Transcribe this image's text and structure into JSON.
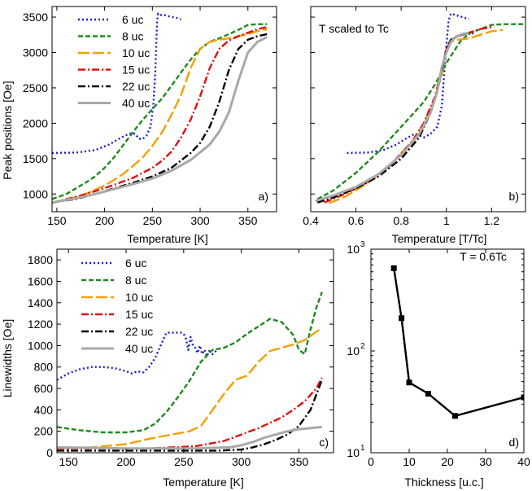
{
  "chart_data": [
    {
      "id": "a",
      "type": "line",
      "panel_label": "a)",
      "xlabel": "Temperature [K]",
      "ylabel": "Peak positions [Oe]",
      "xlim": [
        145,
        380
      ],
      "ylim": [
        750,
        3650
      ],
      "yscale": "linear",
      "xticks": [
        150,
        200,
        250,
        300,
        350
      ],
      "xtick_labels": [
        "150",
        "200",
        "250",
        "300",
        "350"
      ],
      "yticks": [
        1000,
        1500,
        2000,
        2500,
        3000,
        3500
      ],
      "ytick_labels": [
        "1000",
        "1500",
        "2000",
        "2500",
        "3000",
        "3500"
      ],
      "series": [
        {
          "name": "6 uc",
          "color": "#1a1ad6",
          "dash": "2,3",
          "width": 2.4,
          "x": [
            145,
            170,
            190,
            205,
            215,
            222,
            228,
            232,
            236,
            240,
            244,
            248,
            251,
            253,
            254,
            255,
            256,
            258,
            262,
            268,
            275,
            280
          ],
          "y": [
            1580,
            1585,
            1620,
            1700,
            1780,
            1830,
            1860,
            1850,
            1780,
            1780,
            1830,
            1950,
            2250,
            2700,
            3100,
            3450,
            3550,
            3530,
            3530,
            3510,
            3490,
            3470
          ]
        },
        {
          "name": "8 uc",
          "color": "#1e8a1e",
          "dash": "6,3",
          "width": 2.4,
          "x": [
            145,
            160,
            170,
            180,
            190,
            200,
            210,
            220,
            230,
            240,
            250,
            260,
            270,
            280,
            290,
            300,
            310,
            320,
            330,
            340,
            350,
            360,
            370
          ],
          "y": [
            930,
            1000,
            1080,
            1160,
            1250,
            1370,
            1520,
            1700,
            1880,
            2050,
            2200,
            2350,
            2530,
            2720,
            2900,
            3050,
            3150,
            3200,
            3260,
            3320,
            3390,
            3400,
            3400
          ]
        },
        {
          "name": "10 uc",
          "color": "#f5a000",
          "dash": "14,4",
          "width": 2.4,
          "x": [
            145,
            160,
            180,
            200,
            210,
            220,
            230,
            240,
            250,
            260,
            270,
            280,
            290,
            300,
            310,
            320,
            330,
            340,
            350,
            360,
            370
          ],
          "y": [
            870,
            920,
            1000,
            1120,
            1200,
            1290,
            1400,
            1520,
            1680,
            1870,
            2120,
            2400,
            2780,
            3050,
            3150,
            3180,
            3200,
            3230,
            3260,
            3300,
            3330
          ]
        },
        {
          "name": "15 uc",
          "color": "#e01010",
          "dash": "9,3,2,3",
          "width": 2.4,
          "x": [
            145,
            170,
            190,
            210,
            230,
            250,
            260,
            270,
            280,
            290,
            300,
            310,
            320,
            330,
            340,
            350,
            360,
            370
          ],
          "y": [
            880,
            960,
            1040,
            1130,
            1230,
            1370,
            1470,
            1600,
            1800,
            2050,
            2380,
            2780,
            3050,
            3170,
            3230,
            3280,
            3330,
            3360
          ]
        },
        {
          "name": "22 uc",
          "color": "#000000",
          "dash": "9,3,2,3",
          "width": 2.4,
          "x": [
            145,
            170,
            190,
            210,
            230,
            250,
            270,
            290,
            300,
            310,
            320,
            330,
            340,
            350,
            360,
            370
          ],
          "y": [
            880,
            930,
            1000,
            1080,
            1160,
            1250,
            1370,
            1580,
            1720,
            1950,
            2300,
            2750,
            3050,
            3180,
            3230,
            3260
          ]
        },
        {
          "name": "40 uc",
          "color": "#a8a8a8",
          "dash": "",
          "width": 3,
          "x": [
            145,
            170,
            190,
            210,
            230,
            250,
            270,
            290,
            310,
            320,
            330,
            340,
            350,
            360,
            370
          ],
          "y": [
            880,
            940,
            1000,
            1070,
            1140,
            1220,
            1330,
            1480,
            1700,
            1880,
            2150,
            2600,
            3000,
            3150,
            3220
          ]
        }
      ]
    },
    {
      "id": "b",
      "type": "line",
      "panel_label": "b)",
      "annotation": "T  scaled to Tc",
      "xlabel": "Temperature [T/Tc]",
      "ylabel": "",
      "xlim": [
        0.4,
        1.35
      ],
      "ylim": [
        750,
        3650
      ],
      "yscale": "linear",
      "xticks": [
        0.4,
        0.6,
        0.8,
        1.0,
        1.2
      ],
      "xtick_labels": [
        "0.4",
        "0.6",
        "0.8",
        "1",
        "1.2"
      ],
      "yticks": [
        1000,
        1500,
        2000,
        2500,
        3000,
        3500
      ],
      "ytick_labels": [],
      "series": [
        {
          "name": "6 uc",
          "color": "#1a1ad6",
          "dash": "2,3",
          "width": 2.4,
          "x": [
            0.56,
            0.65,
            0.72,
            0.78,
            0.82,
            0.86,
            0.9,
            0.93,
            0.96,
            0.98,
            0.99,
            1.0,
            1.01,
            1.02,
            1.04,
            1.07,
            1.1
          ],
          "y": [
            1580,
            1585,
            1620,
            1700,
            1780,
            1850,
            1800,
            1850,
            1950,
            2250,
            2700,
            3100,
            3450,
            3550,
            3530,
            3500,
            3470
          ]
        },
        {
          "name": "8 uc",
          "color": "#1e8a1e",
          "dash": "6,3",
          "width": 2.4,
          "x": [
            0.43,
            0.5,
            0.6,
            0.7,
            0.8,
            0.9,
            0.95,
            1.0,
            1.03,
            1.06,
            1.1,
            1.15,
            1.2,
            1.25,
            1.3,
            1.35
          ],
          "y": [
            930,
            1050,
            1300,
            1600,
            1950,
            2300,
            2550,
            2850,
            3000,
            3150,
            3270,
            3330,
            3390,
            3400,
            3400,
            3400
          ]
        },
        {
          "name": "10 uc",
          "color": "#f5a000",
          "dash": "14,4",
          "width": 2.4,
          "x": [
            0.48,
            0.55,
            0.65,
            0.75,
            0.85,
            0.9,
            0.95,
            0.98,
            1.0,
            1.02,
            1.05,
            1.1,
            1.15,
            1.2,
            1.25
          ],
          "y": [
            870,
            960,
            1150,
            1400,
            1750,
            2000,
            2350,
            2700,
            3050,
            3150,
            3180,
            3200,
            3250,
            3300,
            3320
          ]
        },
        {
          "name": "15 uc",
          "color": "#e01010",
          "dash": "9,3,2,3",
          "width": 2.4,
          "x": [
            0.46,
            0.55,
            0.65,
            0.75,
            0.85,
            0.9,
            0.95,
            0.98,
            1.0,
            1.02,
            1.05,
            1.1,
            1.15,
            1.2
          ],
          "y": [
            880,
            1000,
            1170,
            1400,
            1750,
            2000,
            2380,
            2780,
            3050,
            3170,
            3230,
            3280,
            3330,
            3360
          ]
        },
        {
          "name": "22 uc",
          "color": "#000000",
          "dash": "9,3,2,3",
          "width": 2.4,
          "x": [
            0.43,
            0.5,
            0.6,
            0.7,
            0.8,
            0.88,
            0.93,
            0.96,
            0.99,
            1.0,
            1.02,
            1.05,
            1.08,
            1.12
          ],
          "y": [
            880,
            950,
            1080,
            1250,
            1500,
            1800,
            2150,
            2450,
            2900,
            3050,
            3180,
            3230,
            3260,
            3270
          ]
        },
        {
          "name": "40 uc",
          "color": "#a8a8a8",
          "dash": "",
          "width": 3,
          "x": [
            0.42,
            0.5,
            0.6,
            0.7,
            0.8,
            0.88,
            0.93,
            0.96,
            0.98,
            1.0,
            1.02,
            1.04,
            1.07,
            1.1
          ],
          "y": [
            900,
            980,
            1100,
            1280,
            1550,
            1850,
            2150,
            2450,
            2800,
            3000,
            3150,
            3220,
            3260,
            3280
          ]
        }
      ]
    },
    {
      "id": "c",
      "type": "line",
      "panel_label": "c)",
      "xlabel": "Temperature [K]",
      "ylabel": "Linewidths [Oe]",
      "xlim": [
        140,
        380
      ],
      "ylim": [
        0,
        1900
      ],
      "yscale": "linear",
      "xticks": [
        150,
        200,
        250,
        300,
        350
      ],
      "xtick_labels": [
        "150",
        "200",
        "250",
        "300",
        "350"
      ],
      "yticks": [
        0,
        200,
        400,
        600,
        800,
        1000,
        1200,
        1400,
        1600,
        1800
      ],
      "ytick_labels": [
        "0",
        "200",
        "400",
        "600",
        "800",
        "1000",
        "1200",
        "1400",
        "1600",
        "1800"
      ],
      "series": [
        {
          "name": "6 uc",
          "color": "#1a1ad6",
          "dash": "2,3",
          "width": 2.4,
          "x": [
            140,
            150,
            160,
            170,
            180,
            190,
            200,
            205,
            210,
            215,
            220,
            225,
            230,
            235,
            240,
            245,
            248,
            250,
            252,
            254,
            256,
            258,
            260,
            262,
            264,
            266,
            268,
            270,
            272,
            275,
            280
          ],
          "y": [
            680,
            740,
            780,
            800,
            800,
            790,
            760,
            740,
            760,
            750,
            800,
            880,
            1000,
            1120,
            1120,
            1120,
            1120,
            1110,
            1060,
            960,
            1080,
            1000,
            980,
            930,
            1000,
            920,
            960,
            900,
            950,
            920,
            970
          ]
        },
        {
          "name": "8 uc",
          "color": "#1e8a1e",
          "dash": "6,3",
          "width": 2.4,
          "x": [
            140,
            160,
            180,
            200,
            215,
            225,
            235,
            245,
            255,
            265,
            275,
            285,
            295,
            305,
            315,
            325,
            335,
            345,
            350,
            355,
            360,
            365,
            370
          ],
          "y": [
            240,
            210,
            190,
            190,
            210,
            270,
            380,
            520,
            670,
            850,
            960,
            980,
            1030,
            1110,
            1180,
            1250,
            1220,
            1100,
            960,
            920,
            1150,
            1350,
            1500
          ]
        },
        {
          "name": "10 uc",
          "color": "#f5a000",
          "dash": "14,4",
          "width": 2.4,
          "x": [
            140,
            170,
            200,
            220,
            240,
            255,
            265,
            275,
            285,
            295,
            305,
            315,
            325,
            335,
            345,
            355,
            365,
            370
          ],
          "y": [
            40,
            50,
            80,
            130,
            170,
            200,
            250,
            400,
            550,
            680,
            720,
            850,
            950,
            980,
            1010,
            1050,
            1130,
            1160
          ]
        },
        {
          "name": "15 uc",
          "color": "#e01010",
          "dash": "9,3,2,3",
          "width": 2.4,
          "x": [
            140,
            180,
            220,
            260,
            275,
            285,
            295,
            305,
            315,
            325,
            335,
            345,
            355,
            365,
            370
          ],
          "y": [
            40,
            40,
            40,
            60,
            90,
            110,
            150,
            190,
            230,
            280,
            330,
            400,
            480,
            600,
            700
          ]
        },
        {
          "name": "22 uc",
          "color": "#000000",
          "dash": "9,3,2,3",
          "width": 2.4,
          "x": [
            140,
            200,
            250,
            280,
            300,
            310,
            320,
            330,
            340,
            350,
            360,
            370
          ],
          "y": [
            20,
            20,
            20,
            20,
            30,
            50,
            80,
            120,
            170,
            250,
            400,
            680
          ]
        },
        {
          "name": "40 uc",
          "color": "#a8a8a8",
          "dash": "",
          "width": 3,
          "x": [
            140,
            200,
            260,
            290,
            300,
            310,
            320,
            330,
            340,
            350,
            360,
            370
          ],
          "y": [
            50,
            40,
            40,
            50,
            70,
            100,
            140,
            170,
            200,
            220,
            230,
            240
          ]
        }
      ]
    },
    {
      "id": "d",
      "type": "line",
      "panel_label": "d)",
      "annotation": "T = 0.6Tc",
      "xlabel": "Thickness [u.c.]",
      "ylabel": "",
      "xlim": [
        0,
        40
      ],
      "ylim": [
        10,
        1000
      ],
      "yscale": "log",
      "xticks": [
        0,
        10,
        20,
        30,
        40
      ],
      "xtick_labels": [
        "0",
        "10",
        "20",
        "30",
        "40"
      ],
      "yticks": [
        10,
        100,
        1000
      ],
      "ytick_labels": [
        "10^1",
        "10^2",
        "10^3"
      ],
      "series": [
        {
          "name": "T = 0.6Tc",
          "color": "#000000",
          "dash": "",
          "width": 2.4,
          "marker": "square",
          "x": [
            6,
            8,
            10,
            15,
            22,
            40
          ],
          "y": [
            650,
            210,
            49,
            38,
            23,
            35
          ]
        }
      ]
    }
  ]
}
